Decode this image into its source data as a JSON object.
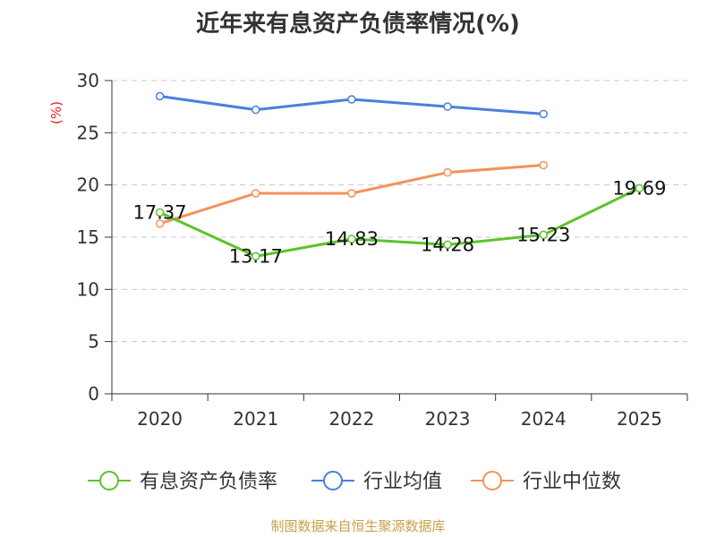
{
  "colors": {
    "debt_ratio": "#5cc429",
    "industry_avg": "#4a7fdc",
    "industry_median": "#f5915a",
    "ylabel": "#e02020",
    "source": "#c8a24a",
    "axis": "#333333",
    "grid": "#c8c8c8"
  },
  "source_note": "制图数据来自恒生聚源数据库",
  "chart_data": {
    "type": "line",
    "title": "近年来有息资产负债率情况(%)",
    "ylabel": "(%)",
    "xlabel": "",
    "categories": [
      "2020",
      "2021",
      "2022",
      "2023",
      "2024",
      "2025"
    ],
    "ylim": [
      0,
      30
    ],
    "yticks": [
      "0",
      "5",
      "10",
      "15",
      "20",
      "25",
      "30"
    ],
    "grid": "horizontal dashed",
    "legend_position": "bottom",
    "series": [
      {
        "name": "有息资产负债率",
        "color": "#5cc429",
        "values": [
          17.37,
          13.17,
          14.83,
          14.28,
          15.23,
          19.69
        ],
        "labels": [
          "17.37",
          "13.17",
          "14.83",
          "14.28",
          "15.23",
          "19.69"
        ]
      },
      {
        "name": "行业均值",
        "color": "#4a7fdc",
        "values": [
          28.5,
          27.2,
          28.2,
          27.5,
          26.8,
          null
        ]
      },
      {
        "name": "行业中位数",
        "color": "#f5915a",
        "values": [
          16.3,
          19.2,
          19.2,
          21.2,
          21.9,
          null
        ]
      }
    ]
  }
}
